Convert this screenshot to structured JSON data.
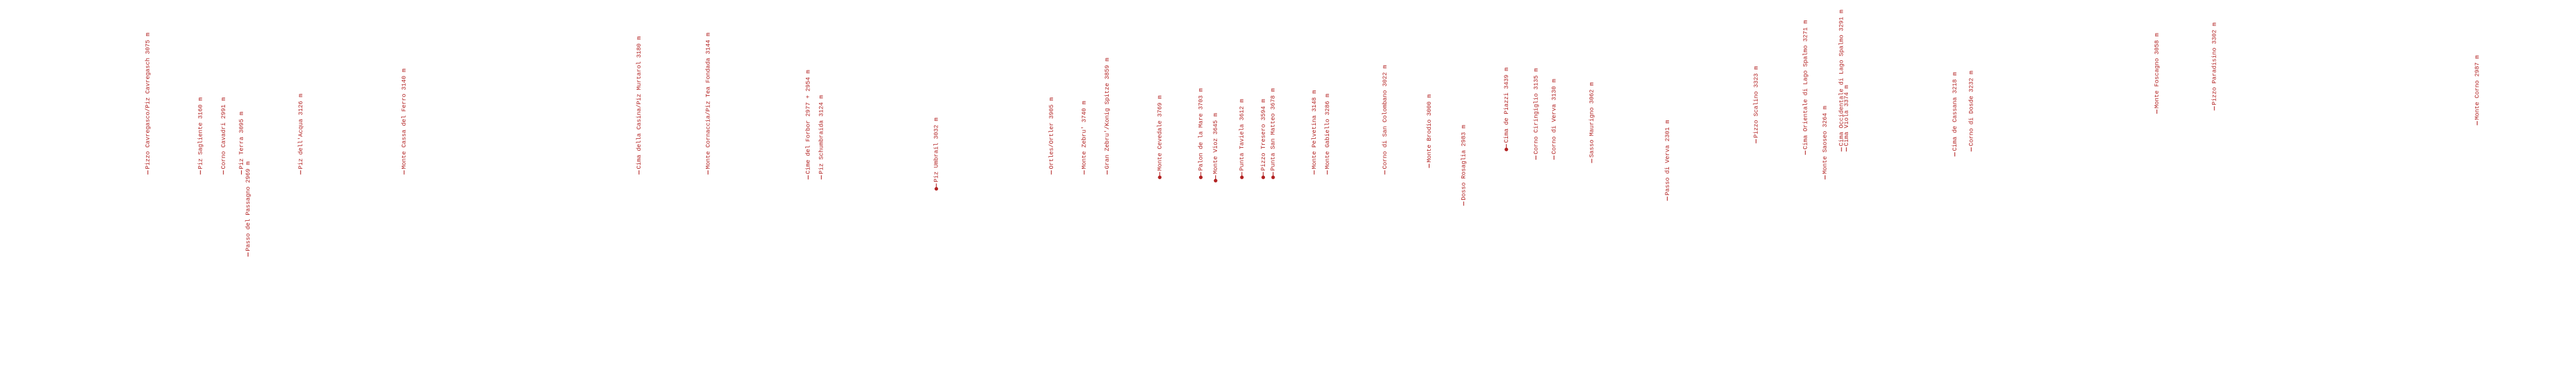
{
  "peaks": [
    "Pizzo Cavregasco/Piz Cavregasch 3075 m",
    "Piz Sagliente 3160 m",
    "Corno Cavadri 2991 m",
    "Piz Terra 3095 m",
    "Passo del Passagno 2969 m",
    "Piz dell'Acqua 3126 m",
    "Monte Cassa del Ferro 3140 m",
    "Cima della Casina/Piz Murtarol 3180 m",
    "Monte Cornaccia/Piz Tea Fondada 3144 m",
    "Cime del Forbor 2977 + 2954 m",
    "Piz Schumbraida 3124 m",
    "Piz Umbrail 3032 m",
    "Ortles/Ortler 3905 m",
    "Monte Zebru' 3740 m",
    "Gran Zebru'/Konig Spitze 3859 m",
    "Monte Cevedale 3769 m",
    "Palon de la Mare 3703 m",
    "Monte Vioz 3645 m",
    "Punta Taviela 3612 m",
    "Pizzo Tresero 3594 m",
    "Punta San Matteo 3678 m",
    "Monte Pelvetina 3148 m",
    "Monte Gabiello 3286 m",
    "Corno di San Colombano 3022 m",
    "Monte Brodio 3000 m",
    "Dosso Rosaglia 2983 m",
    "Cima de Piazzi 3439 m",
    "Corno Ciringiglio 3135 m",
    "Corno di Verva 3130 m",
    "Sasso Maurigno 3062 m",
    "Passo di Verva 2301 m",
    "Pizzo Scalino 3323 m",
    "Cima Orientale di Lago Spalmo 3271 m",
    "Monte Saoseo 3264 m",
    "Cima Occidentale di Lago Spalmo 3291 m",
    "Cima Viola 3374 m",
    "Cima de Cassana 3218 m",
    "Corno di Dosde 3232 m",
    "Monte Foscagno 3058 m",
    "Pizzo Paradisino 3302 m",
    "Monte Corno 2987 m"
  ]
}
